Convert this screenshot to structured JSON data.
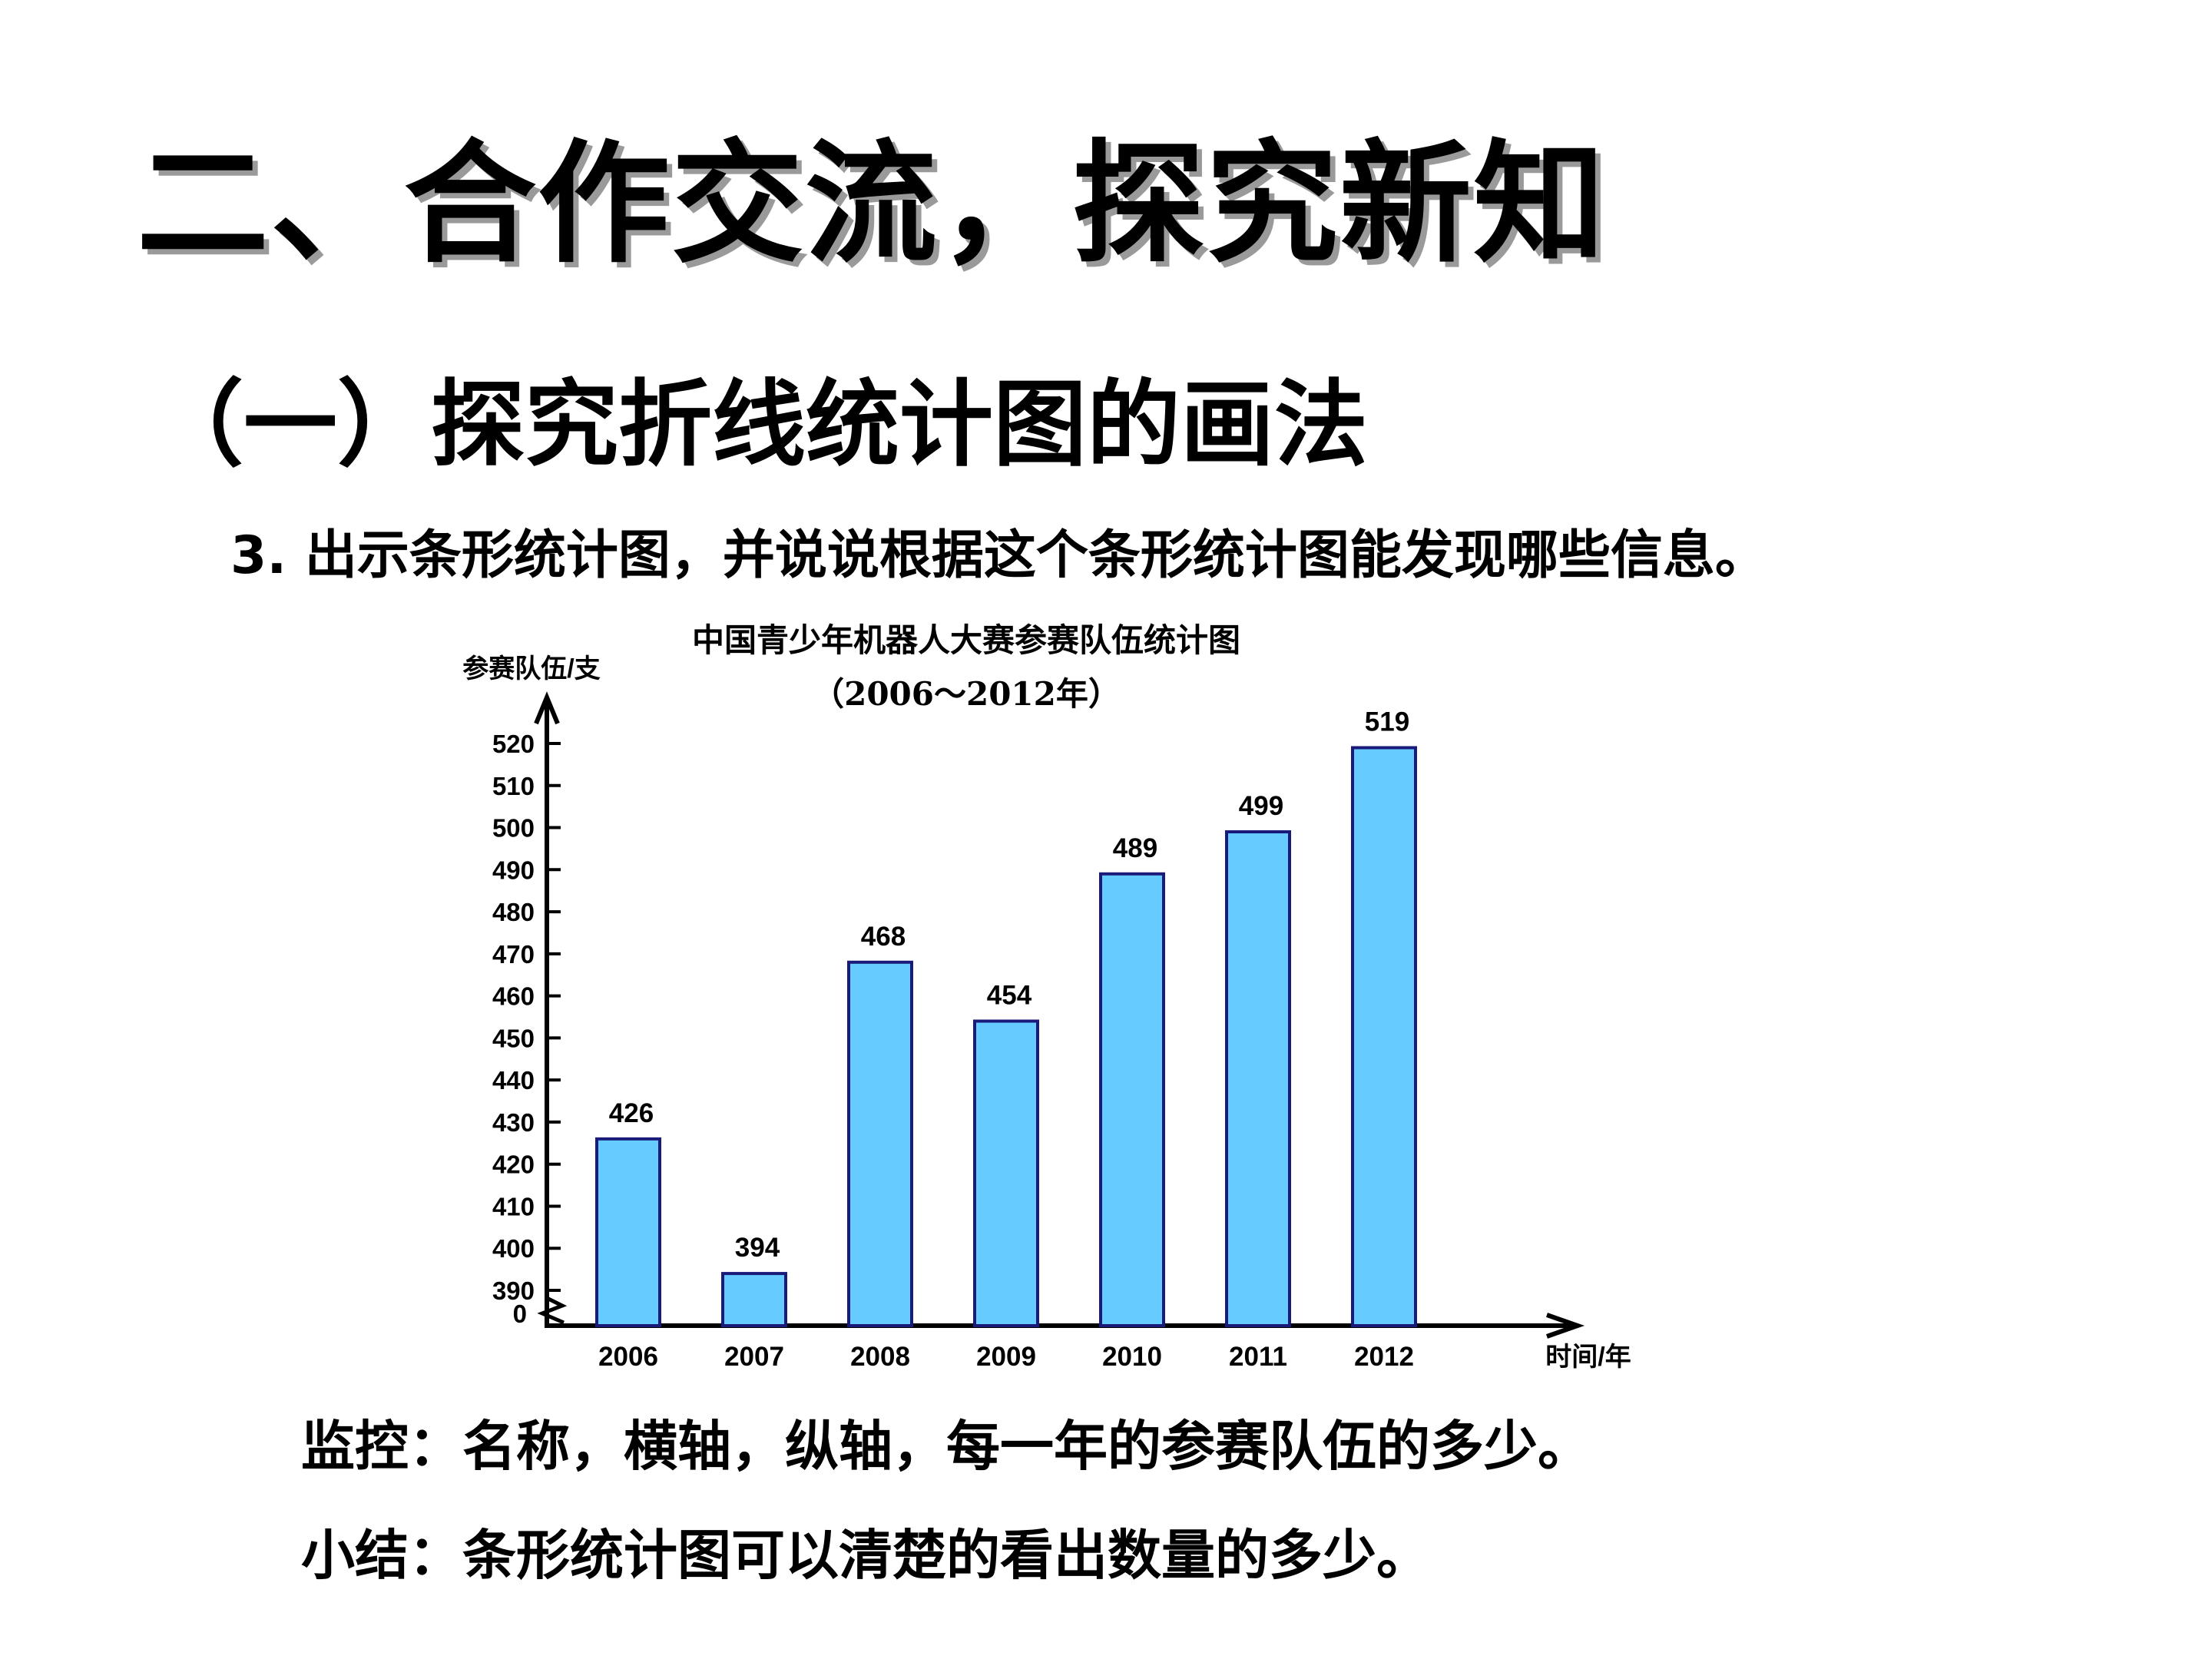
{
  "slide": {
    "main_title": "二、合作交流，探究新知",
    "section_title": "（一）探究折线统计图的画法",
    "instruction": "3. 出示条形统计图，并说说根据这个条形统计图能发现哪些信息。",
    "observe_note": "监控：名称，横轴，纵轴，每一年的参赛队伍的多少。",
    "summary_note": "小结：条形统计图可以清楚的看出数量的多少。"
  },
  "chart_data": {
    "type": "bar",
    "title": "中国青少年机器人大赛参赛队伍统计图",
    "subtitle": "（2006～2012年）",
    "xlabel": "时间/年",
    "ylabel": "参赛队伍/支",
    "categories": [
      "2006",
      "2007",
      "2008",
      "2009",
      "2010",
      "2011",
      "2012"
    ],
    "values": [
      426,
      394,
      468,
      454,
      489,
      499,
      519
    ],
    "y_ticks": [
      "0",
      "390",
      "400",
      "410",
      "420",
      "430",
      "440",
      "450",
      "460",
      "470",
      "480",
      "490",
      "500",
      "510",
      "520"
    ],
    "ylim": [
      390,
      520
    ],
    "axis_break": true,
    "grid": false,
    "colors": {
      "bar_fill": "#66ccff",
      "bar_stroke": "#1a1a7a",
      "axis": "#000000"
    }
  }
}
